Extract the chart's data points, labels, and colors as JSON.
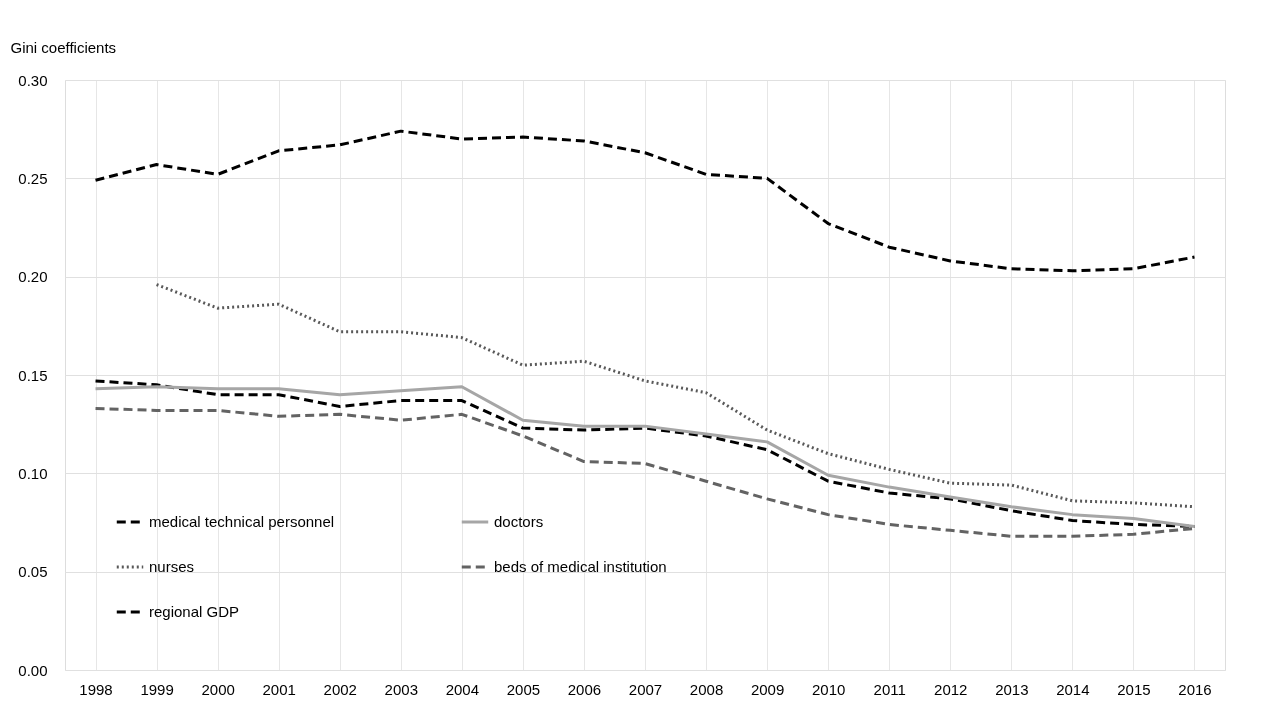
{
  "chart_data": {
    "type": "line",
    "ylabel": "Gini coefficients",
    "categories": [
      "1998",
      "1999",
      "2000",
      "2001",
      "2002",
      "2003",
      "2004",
      "2005",
      "2006",
      "2007",
      "2008",
      "2009",
      "2010",
      "2011",
      "2012",
      "2013",
      "2014",
      "2015",
      "2016"
    ],
    "series": [
      {
        "name": "medical technical personnel",
        "color": "#000000",
        "line_style": "dashed",
        "values": [
          0.147,
          0.145,
          0.14,
          0.14,
          0.134,
          0.137,
          0.137,
          0.123,
          0.122,
          0.123,
          0.119,
          0.112,
          0.096,
          0.09,
          0.087,
          0.081,
          0.076,
          0.074,
          0.073
        ]
      },
      {
        "name": "doctors",
        "color": "#a6a6a6",
        "line_style": "solid",
        "values": [
          0.143,
          0.144,
          0.143,
          0.143,
          0.14,
          0.142,
          0.144,
          0.127,
          0.124,
          0.124,
          0.12,
          0.116,
          0.099,
          0.093,
          0.088,
          0.083,
          0.079,
          0.077,
          0.073
        ]
      },
      {
        "name": "nurses",
        "color": "#595959",
        "line_style": "dotted",
        "values": [
          null,
          0.196,
          0.184,
          0.186,
          0.172,
          0.172,
          0.169,
          0.155,
          0.157,
          0.147,
          0.141,
          0.122,
          0.11,
          0.102,
          0.095,
          0.094,
          0.086,
          0.085,
          0.083
        ]
      },
      {
        "name": "beds of medical institution",
        "color": "#636363",
        "line_style": "dashed",
        "values": [
          0.133,
          0.132,
          0.132,
          0.129,
          0.13,
          0.127,
          0.13,
          0.119,
          0.106,
          0.105,
          0.096,
          0.087,
          0.079,
          0.074,
          0.071,
          0.068,
          0.068,
          0.069,
          0.072
        ]
      },
      {
        "name": "regional GDP",
        "color": "#000000",
        "line_style": "dashed",
        "values": [
          0.249,
          0.257,
          0.252,
          0.264,
          0.267,
          0.274,
          0.27,
          0.271,
          0.269,
          0.263,
          0.252,
          0.25,
          0.227,
          0.215,
          0.208,
          0.204,
          0.203,
          0.204,
          0.21
        ]
      }
    ],
    "ylim": [
      0,
      0.3
    ],
    "yticks": [
      {
        "value": 0,
        "label": "0.00"
      },
      0.05,
      {
        "value": 0.1,
        "label": "0.10"
      },
      0.15,
      {
        "value": 0.2,
        "label": "0.20"
      },
      0.25,
      {
        "value": 0.3,
        "label": "0.30"
      }
    ],
    "grid": true,
    "legend": "bottom left"
  }
}
